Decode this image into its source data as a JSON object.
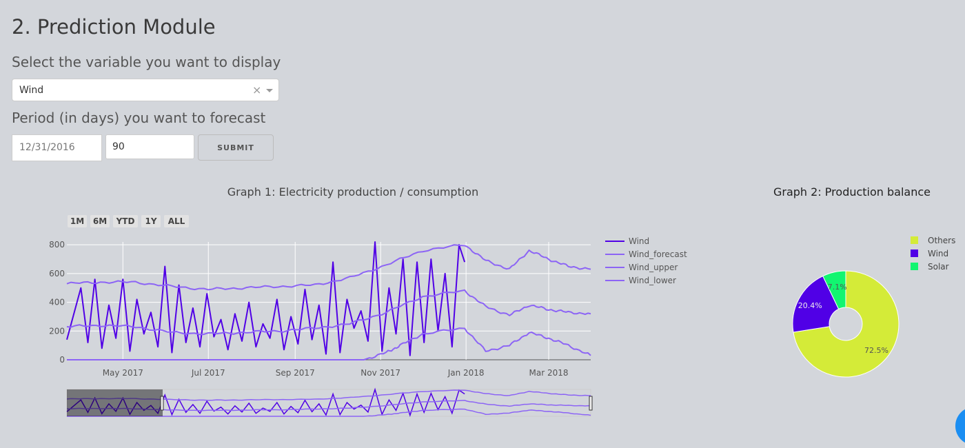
{
  "page": {
    "title": "2. Prediction Module"
  },
  "controls": {
    "variable_label": "Select the variable you want to display",
    "variable_value": "Wind",
    "clear_glyph": "×",
    "period_label": "Period (in days) you want to forecast",
    "date_placeholder": "12/31/2016",
    "days_value": "90",
    "submit_label": "SUBMIT"
  },
  "graph1": {
    "range_buttons": [
      "1M",
      "6M",
      "YTD",
      "1Y",
      "ALL"
    ]
  },
  "graph2": {},
  "colors": {
    "wind": "#5000e6",
    "band": "#8c64f5",
    "others": "#d4eb38",
    "solar": "#12f570",
    "fab": "#1b8ef2"
  },
  "icons": {
    "fab": "action-button-icon"
  },
  "chart_data": [
    {
      "type": "line",
      "title": "Graph 1: Electricity production / consumption",
      "xlabel": "",
      "ylabel": "",
      "ylim": [
        0,
        820
      ],
      "yticks": [
        0,
        200,
        400,
        600,
        800
      ],
      "xticks": [
        "May 2017",
        "Jul 2017",
        "Sep 2017",
        "Nov 2017",
        "Jan 2018",
        "Mar 2018"
      ],
      "xrange": [
        "2017-03-22",
        "2018-03-31"
      ],
      "legend": "top-right",
      "grid": true,
      "has_range_slider": true,
      "series": [
        {
          "name": "Wind",
          "x": [
            "2017-03-22",
            "2017-04-01",
            "2017-04-06",
            "2017-04-11",
            "2017-04-16",
            "2017-04-21",
            "2017-04-26",
            "2017-05-01",
            "2017-05-06",
            "2017-05-11",
            "2017-05-16",
            "2017-05-21",
            "2017-05-26",
            "2017-05-31",
            "2017-06-05",
            "2017-06-10",
            "2017-06-15",
            "2017-06-20",
            "2017-06-25",
            "2017-06-30",
            "2017-07-05",
            "2017-07-10",
            "2017-07-15",
            "2017-07-20",
            "2017-07-25",
            "2017-07-30",
            "2017-08-04",
            "2017-08-09",
            "2017-08-14",
            "2017-08-19",
            "2017-08-24",
            "2017-08-29",
            "2017-09-03",
            "2017-09-08",
            "2017-09-13",
            "2017-09-18",
            "2017-09-23",
            "2017-09-28",
            "2017-10-03",
            "2017-10-08",
            "2017-10-13",
            "2017-10-18",
            "2017-10-23",
            "2017-10-28",
            "2017-11-02",
            "2017-11-07",
            "2017-11-12",
            "2017-11-17",
            "2017-11-22",
            "2017-11-27",
            "2017-12-02",
            "2017-12-07",
            "2017-12-12",
            "2017-12-17",
            "2017-12-22",
            "2017-12-27",
            "2017-12-31"
          ],
          "values": [
            140,
            500,
            120,
            560,
            80,
            380,
            150,
            560,
            60,
            420,
            180,
            330,
            90,
            650,
            50,
            520,
            120,
            360,
            90,
            460,
            160,
            280,
            70,
            320,
            130,
            400,
            90,
            250,
            150,
            420,
            70,
            300,
            110,
            490,
            140,
            380,
            40,
            680,
            50,
            420,
            220,
            340,
            130,
            820,
            60,
            500,
            180,
            700,
            30,
            680,
            120,
            700,
            200,
            600,
            90,
            800,
            680
          ]
        },
        {
          "name": "Wind_forecast",
          "x": [
            "2017-03-22",
            "2017-04-15",
            "2017-05-10",
            "2017-06-05",
            "2017-07-01",
            "2017-07-25",
            "2017-08-20",
            "2017-09-15",
            "2017-10-10",
            "2017-11-05",
            "2017-12-01",
            "2017-12-31",
            "2018-01-15",
            "2018-02-01",
            "2018-02-15",
            "2018-03-01",
            "2018-03-15",
            "2018-03-31"
          ],
          "values": [
            230,
            240,
            230,
            190,
            180,
            190,
            200,
            220,
            250,
            330,
            440,
            480,
            370,
            310,
            380,
            350,
            330,
            320
          ]
        },
        {
          "name": "Wind_upper",
          "x": [
            "2017-03-22",
            "2017-04-15",
            "2017-05-10",
            "2017-06-05",
            "2017-07-01",
            "2017-07-25",
            "2017-08-20",
            "2017-09-15",
            "2017-10-10",
            "2017-11-05",
            "2017-12-01",
            "2017-12-31",
            "2018-01-15",
            "2018-02-01",
            "2018-02-15",
            "2018-03-01",
            "2018-03-15",
            "2018-03-31"
          ],
          "values": [
            530,
            540,
            540,
            510,
            490,
            500,
            510,
            520,
            570,
            660,
            760,
            800,
            690,
            630,
            760,
            700,
            650,
            630
          ]
        },
        {
          "name": "Wind_lower",
          "x": [
            "2017-03-22",
            "2017-09-25",
            "2017-10-20",
            "2017-11-05",
            "2017-11-15",
            "2017-12-01",
            "2017-12-31",
            "2018-01-15",
            "2018-02-01",
            "2018-02-15",
            "2018-03-01",
            "2018-03-15",
            "2018-03-31"
          ],
          "values": [
            0,
            0,
            0,
            50,
            100,
            180,
            220,
            60,
            100,
            190,
            150,
            100,
            30
          ]
        }
      ]
    },
    {
      "type": "pie",
      "title": "Graph 2: Production balance",
      "legend": "top-right",
      "hole": true,
      "categories": [
        "Others",
        "Wind",
        "Solar"
      ],
      "values": [
        72.5,
        20.4,
        7.1
      ],
      "labels": [
        "72.5%",
        "20.4%",
        "7.1%"
      ]
    }
  ]
}
